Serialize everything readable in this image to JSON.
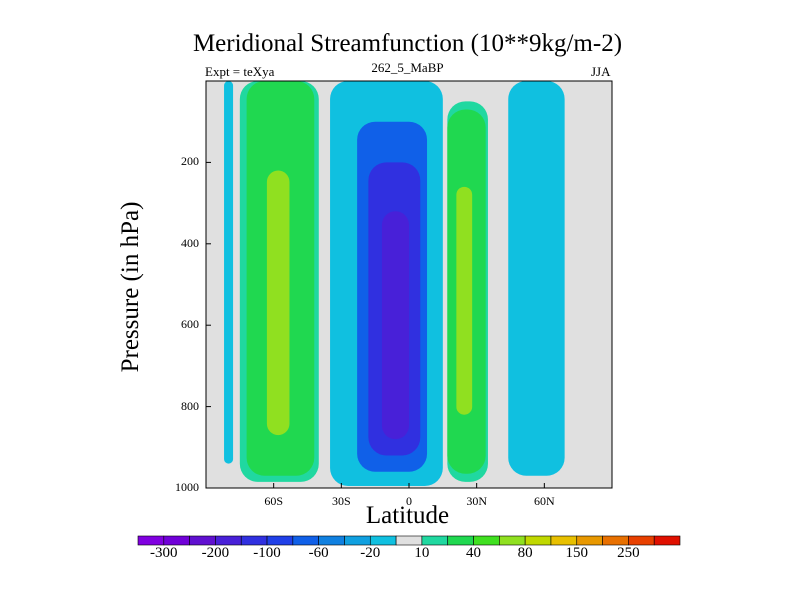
{
  "chart_data": {
    "type": "heatmap",
    "title": "Meridional Streamfunction (10**9kg/m-2)",
    "left_label": "Expt = teXya",
    "center_label": "262_5_MaBP",
    "right_label": "JJA",
    "xlabel": "Latitude",
    "ylabel": "Pressure (in hPa)",
    "xlim": [
      -90,
      90
    ],
    "ylim": [
      1000,
      0
    ],
    "y_reversed": true,
    "grid": false,
    "x_ticks": [
      {
        "value": -60,
        "label": "60S"
      },
      {
        "value": -30,
        "label": "30S"
      },
      {
        "value": 0,
        "label": "0"
      },
      {
        "value": 30,
        "label": "30N"
      },
      {
        "value": 60,
        "label": "60N"
      }
    ],
    "y_ticks": [
      {
        "value": 200,
        "label": "200"
      },
      {
        "value": 400,
        "label": "400"
      },
      {
        "value": 600,
        "label": "600"
      },
      {
        "value": 800,
        "label": "800"
      },
      {
        "value": 1000,
        "label": "1000"
      }
    ],
    "colorbar": {
      "levels": [
        -300,
        -250,
        -200,
        -150,
        -100,
        -80,
        -60,
        -40,
        -20,
        -10,
        10,
        20,
        40,
        60,
        80,
        100,
        150,
        200,
        250,
        300
      ],
      "labels": [
        "-300",
        "-200",
        "-100",
        "-60",
        "-20",
        "10",
        "40",
        "80",
        "150",
        "250"
      ],
      "colors": [
        "#8000e0",
        "#7000d8",
        "#6010d0",
        "#4820d8",
        "#3030e0",
        "#2040e8",
        "#1060e8",
        "#1080e0",
        "#10a0e0",
        "#10c0e0",
        "#e0e0e0",
        "#20d8a0",
        "#20d850",
        "#40e020",
        "#90e020",
        "#c0d800",
        "#e8c000",
        "#e89800",
        "#e87000",
        "#e84000",
        "#e01000"
      ]
    },
    "contours": [
      {
        "value": "10",
        "color": "#e0e0e0",
        "region": "background"
      },
      {
        "value": "-10",
        "color": "#10c0e0",
        "region": "southern polar cell",
        "lat_range": [
          -82,
          -78
        ],
        "p_range": [
          0,
          940
        ]
      },
      {
        "value": "-10",
        "color": "#10c0e0",
        "region": "northern mid-latitude cell",
        "lat_range": [
          44,
          69
        ],
        "p_range": [
          0,
          970
        ]
      },
      {
        "value": "20",
        "color": "#20d8a0",
        "region": "southern Ferrel cell",
        "lat_range": [
          -75,
          -40
        ],
        "p_range": [
          0,
          985
        ]
      },
      {
        "value": "40",
        "color": "#20d850",
        "region": "southern Ferrel cell",
        "lat_range": [
          -72,
          -42
        ],
        "p_range": [
          0,
          970
        ]
      },
      {
        "value": "80",
        "color": "#90e020",
        "region": "southern Ferrel cell core",
        "lat_range": [
          -63,
          -53
        ],
        "p_range": [
          220,
          870
        ]
      },
      {
        "value": "20",
        "color": "#20d8a0",
        "region": "northern cell",
        "lat_range": [
          17,
          35
        ],
        "p_range": [
          50,
          985
        ]
      },
      {
        "value": "40",
        "color": "#20d850",
        "region": "northern cell",
        "lat_range": [
          17,
          34
        ],
        "p_range": [
          70,
          965
        ]
      },
      {
        "value": "80",
        "color": "#90e020",
        "region": "northern cell core",
        "lat_range": [
          21,
          28
        ],
        "p_range": [
          260,
          820
        ]
      },
      {
        "value": "-10",
        "color": "#10c0e0",
        "region": "Hadley cell",
        "lat_range": [
          -35,
          15
        ],
        "p_range": [
          0,
          995
        ]
      },
      {
        "value": "-60",
        "color": "#1060e8",
        "region": "Hadley cell",
        "lat_range": [
          -23,
          8
        ],
        "p_range": [
          100,
          960
        ]
      },
      {
        "value": "-100",
        "color": "#3030e0",
        "region": "Hadley cell",
        "lat_range": [
          -18,
          5
        ],
        "p_range": [
          200,
          920
        ]
      },
      {
        "value": "-150",
        "color": "#4820d8",
        "region": "Hadley cell core",
        "lat_range": [
          -12,
          0
        ],
        "p_range": [
          320,
          880
        ]
      }
    ]
  }
}
